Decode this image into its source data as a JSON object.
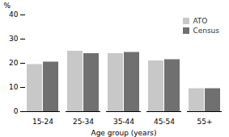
{
  "chart_data": {
    "type": "bar",
    "categories": [
      "15-24",
      "25-34",
      "35-44",
      "45-54",
      "55+"
    ],
    "series": [
      {
        "name": "ATO",
        "color": "#c8c8c8",
        "values": [
          19.5,
          25.0,
          24.0,
          21.0,
          9.5
        ]
      },
      {
        "name": "Census",
        "color": "#707070",
        "values": [
          20.5,
          24.0,
          24.5,
          21.5,
          9.5
        ]
      }
    ],
    "xlabel": "Age group (years)",
    "ylabel": "%",
    "ylim": [
      0,
      40
    ],
    "yticks": [
      0,
      10,
      20,
      30,
      40
    ],
    "legend": "upper right",
    "grid": false
  }
}
